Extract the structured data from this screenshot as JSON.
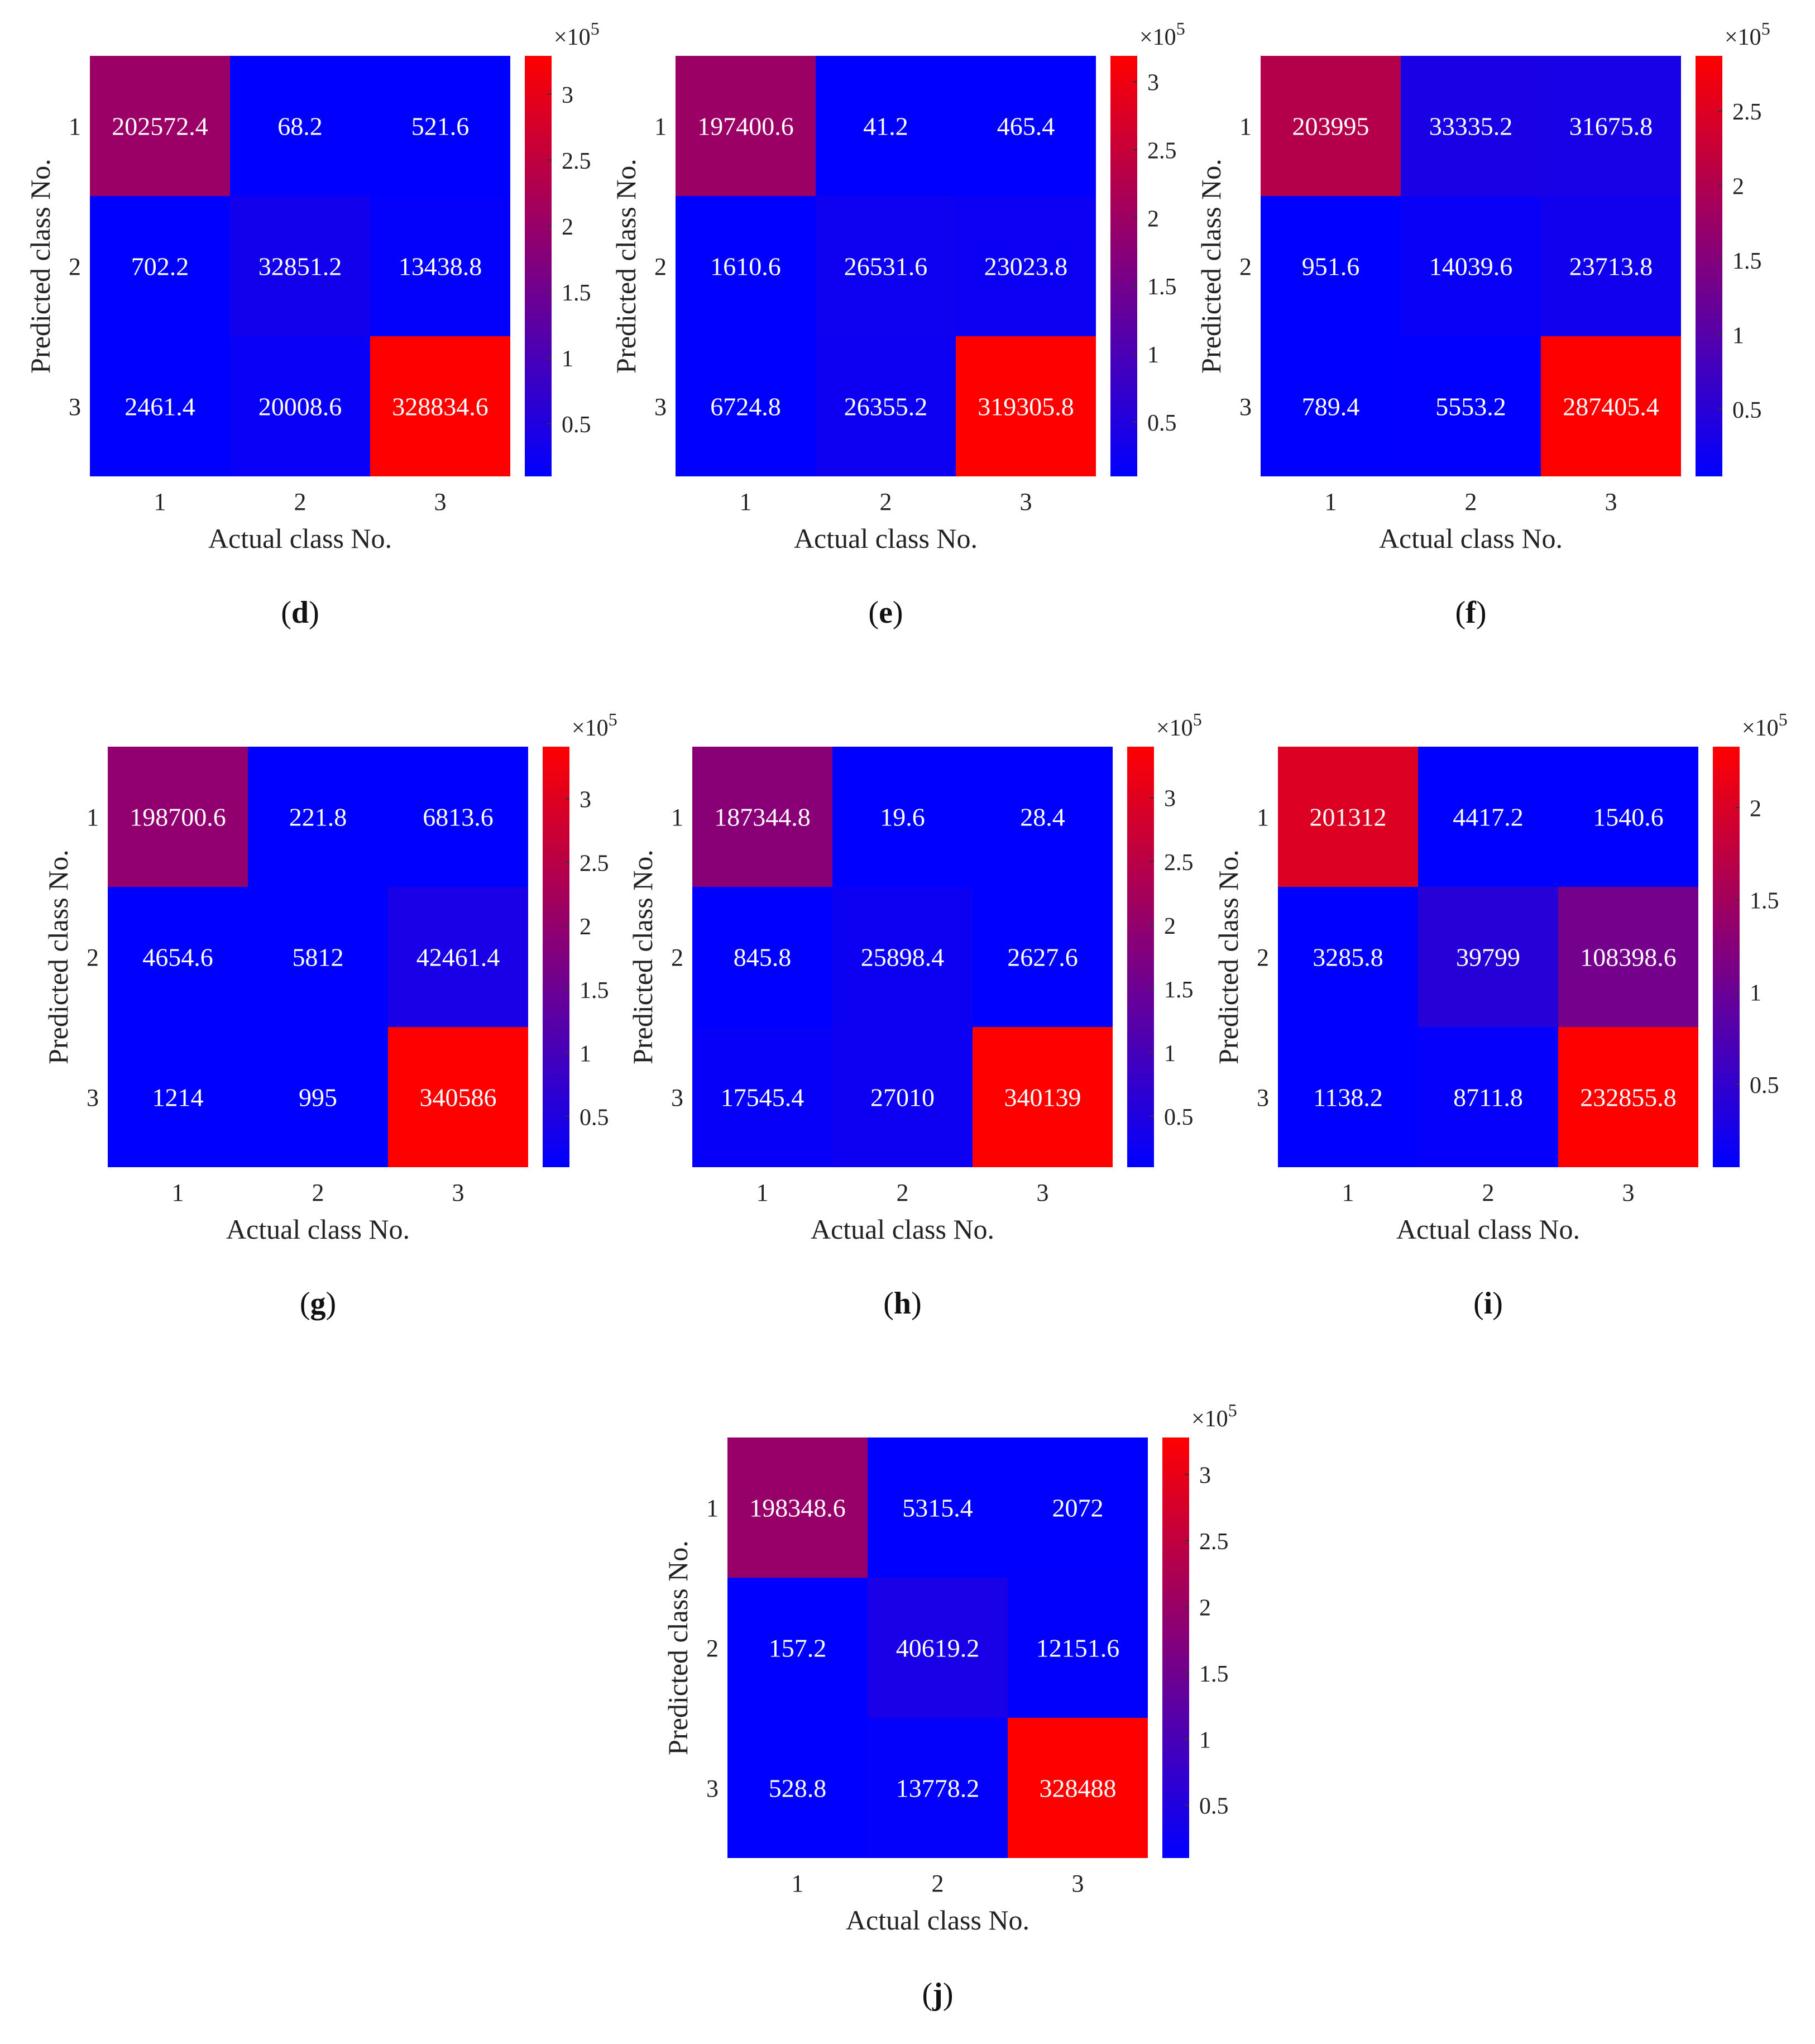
{
  "figure": {
    "xlabel": "Actual class No.",
    "ylabel": "Predicted class No.",
    "colorbar_exponent_base": "×10",
    "colorbar_exponent_power": "5",
    "colormap": {
      "low": "#0000ff",
      "high": "#ff0000"
    }
  },
  "chart_data": [
    {
      "type": "heatmap",
      "panel": "d",
      "x_categories": [
        "1",
        "2",
        "3"
      ],
      "y_categories": [
        "1",
        "2",
        "3"
      ],
      "xlabel": "Actual class No.",
      "ylabel": "Predicted class No.",
      "values": [
        [
          202572.4,
          68.2,
          521.6
        ],
        [
          702.2,
          32851.2,
          13438.8
        ],
        [
          2461.4,
          20008.6,
          328834.6
        ]
      ],
      "colorbar": {
        "ticks": [
          "0.5",
          "1",
          "1.5",
          "2",
          "2.5",
          "3"
        ],
        "tick_values": [
          0.5,
          1,
          1.5,
          2,
          2.5,
          3
        ],
        "range": [
          0.1,
          3.29
        ],
        "multiplier": "×10^5"
      }
    },
    {
      "type": "heatmap",
      "panel": "e",
      "x_categories": [
        "1",
        "2",
        "3"
      ],
      "y_categories": [
        "1",
        "2",
        "3"
      ],
      "xlabel": "Actual class No.",
      "ylabel": "Predicted class No.",
      "values": [
        [
          197400.6,
          41.2,
          465.4
        ],
        [
          1610.6,
          26531.6,
          23023.8
        ],
        [
          6724.8,
          26355.2,
          319305.8
        ]
      ],
      "colorbar": {
        "ticks": [
          "0.5",
          "1",
          "1.5",
          "2",
          "2.5",
          "3"
        ],
        "tick_values": [
          0.5,
          1,
          1.5,
          2,
          2.5,
          3
        ],
        "range": [
          0.1,
          3.19
        ],
        "multiplier": "×10^5"
      }
    },
    {
      "type": "heatmap",
      "panel": "f",
      "x_categories": [
        "1",
        "2",
        "3"
      ],
      "y_categories": [
        "1",
        "2",
        "3"
      ],
      "xlabel": "Actual class No.",
      "ylabel": "Predicted class No.",
      "values": [
        [
          203995,
          33335.2,
          31675.8
        ],
        [
          951.6,
          14039.6,
          23713.8
        ],
        [
          789.4,
          5553.2,
          287405.4
        ]
      ],
      "colorbar": {
        "ticks": [
          "0.5",
          "1",
          "1.5",
          "2",
          "2.5"
        ],
        "tick_values": [
          0.5,
          1,
          1.5,
          2,
          2.5
        ],
        "range": [
          0.05,
          2.87
        ],
        "multiplier": "×10^5"
      }
    },
    {
      "type": "heatmap",
      "panel": "g",
      "x_categories": [
        "1",
        "2",
        "3"
      ],
      "y_categories": [
        "1",
        "2",
        "3"
      ],
      "xlabel": "Actual class No.",
      "ylabel": "Predicted class No.",
      "values": [
        [
          198700.6,
          221.8,
          6813.6
        ],
        [
          4654.6,
          5812,
          42461.4
        ],
        [
          1214,
          995,
          340586
        ]
      ],
      "colorbar": {
        "ticks": [
          "0.5",
          "1",
          "1.5",
          "2",
          "2.5",
          "3"
        ],
        "tick_values": [
          0.5,
          1,
          1.5,
          2,
          2.5,
          3
        ],
        "range": [
          0.1,
          3.41
        ],
        "multiplier": "×10^5"
      }
    },
    {
      "type": "heatmap",
      "panel": "h",
      "x_categories": [
        "1",
        "2",
        "3"
      ],
      "y_categories": [
        "1",
        "2",
        "3"
      ],
      "xlabel": "Actual class No.",
      "ylabel": "Predicted class No.",
      "values": [
        [
          187344.8,
          19.6,
          28.4
        ],
        [
          845.8,
          25898.4,
          2627.6
        ],
        [
          17545.4,
          27010,
          340139
        ]
      ],
      "colorbar": {
        "ticks": [
          "0.5",
          "1",
          "1.5",
          "2",
          "2.5",
          "3"
        ],
        "tick_values": [
          0.5,
          1,
          1.5,
          2,
          2.5,
          3
        ],
        "range": [
          0.1,
          3.4
        ],
        "multiplier": "×10^5"
      }
    },
    {
      "type": "heatmap",
      "panel": "i",
      "x_categories": [
        "1",
        "2",
        "3"
      ],
      "y_categories": [
        "1",
        "2",
        "3"
      ],
      "xlabel": "Actual class No.",
      "ylabel": "Predicted class No.",
      "values": [
        [
          201312,
          4417.2,
          1540.6
        ],
        [
          3285.8,
          39799,
          108398.6
        ],
        [
          1138.2,
          8711.8,
          232855.8
        ]
      ],
      "colorbar": {
        "ticks": [
          "0.5",
          "1",
          "1.5",
          "2"
        ],
        "tick_values": [
          0.5,
          1,
          1.5,
          2
        ],
        "range": [
          0.05,
          2.33
        ],
        "multiplier": "×10^5"
      }
    },
    {
      "type": "heatmap",
      "panel": "j",
      "x_categories": [
        "1",
        "2",
        "3"
      ],
      "y_categories": [
        "1",
        "2",
        "3"
      ],
      "xlabel": "Actual class No.",
      "ylabel": "Predicted class No.",
      "values": [
        [
          198348.6,
          5315.4,
          2072
        ],
        [
          157.2,
          40619.2,
          12151.6
        ],
        [
          528.8,
          13778.2,
          328488
        ]
      ],
      "colorbar": {
        "ticks": [
          "0.5",
          "1",
          "1.5",
          "2",
          "2.5",
          "3"
        ],
        "tick_values": [
          0.5,
          1,
          1.5,
          2,
          2.5,
          3
        ],
        "range": [
          0.1,
          3.28
        ],
        "multiplier": "×10^5"
      }
    }
  ]
}
